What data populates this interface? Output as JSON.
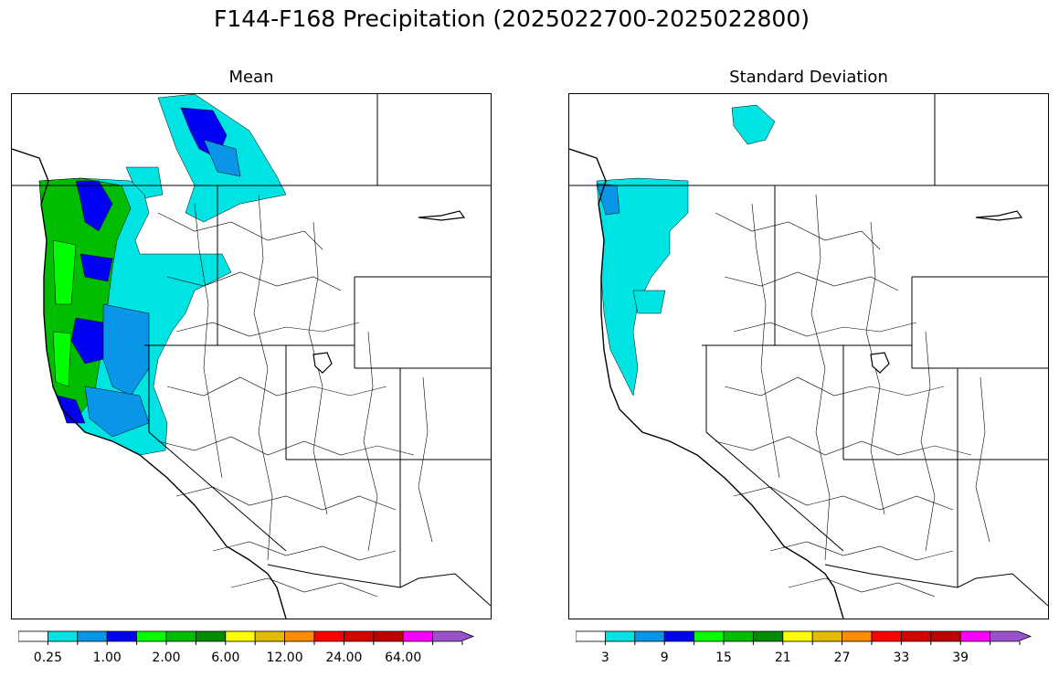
{
  "figure": {
    "title": "F144-F168 Precipitation (2025022700-2025022800)"
  },
  "panels": [
    {
      "id": "mean",
      "title": "Mean",
      "colorbar": {
        "colors": [
          "#ffffff",
          "#00e3e3",
          "#0a96e8",
          "#0000f2",
          "#00ff00",
          "#00bd00",
          "#008c00",
          "#ffff00",
          "#e3bc00",
          "#ff8c00",
          "#ff0000",
          "#d90000",
          "#bf0000",
          "#ff00ff",
          "#9a52c9"
        ],
        "tick_labels": [
          "0.25",
          "1.00",
          "2.00",
          "6.00",
          "12.00",
          "24.00",
          "64.00"
        ],
        "extend": "max"
      }
    },
    {
      "id": "stddev",
      "title": "Standard Deviation",
      "colorbar": {
        "colors": [
          "#ffffff",
          "#00e3e3",
          "#0a96e8",
          "#0000f2",
          "#00ff00",
          "#00bd00",
          "#008c00",
          "#ffff00",
          "#e3bc00",
          "#ff8c00",
          "#ff0000",
          "#d90000",
          "#bf0000",
          "#ff00ff",
          "#9a52c9"
        ],
        "tick_labels": [
          "3",
          "9",
          "15",
          "21",
          "27",
          "33",
          "39"
        ],
        "extend": "max"
      }
    }
  ],
  "map": {
    "region": "Western United States river basins",
    "mean_shading": "Heaviest precipitation (blue/green, ~1-6) along the Pacific Northwest and northern California coast; light cyan amounts inland to the Cascades and northern Rockies; little to none elsewhere.",
    "stddev_shading": "Low spread (cyan, ~3-9) confined to western Washington, Oregon coast and the upper Columbia; white elsewhere."
  }
}
